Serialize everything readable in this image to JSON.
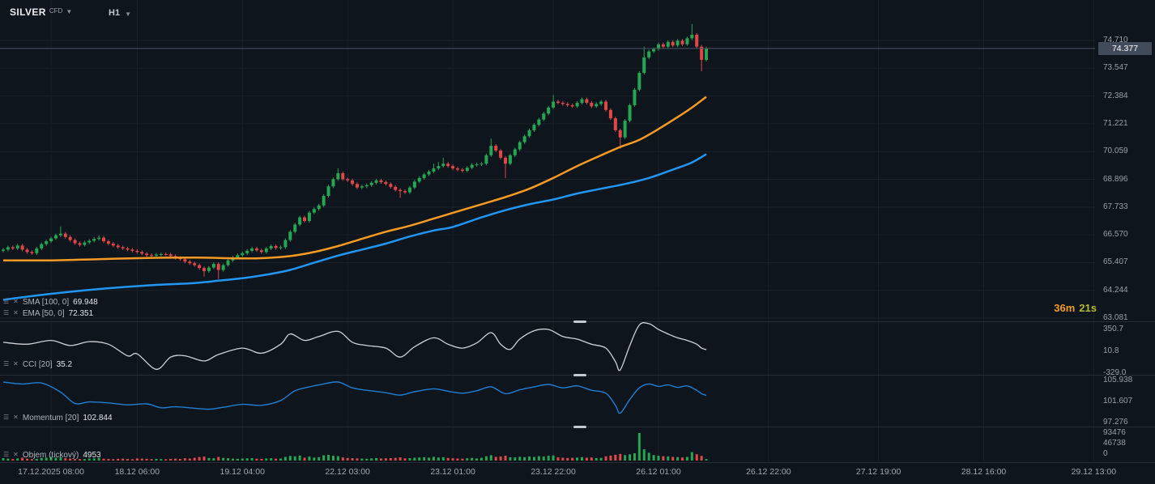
{
  "app": {
    "instrument": "SILVER",
    "instrument_type": "CFD",
    "timeframe": "H1",
    "current_price": "74.377",
    "countdown": {
      "minutes": "36m",
      "seconds": "21s"
    }
  },
  "overlays": [
    {
      "label": "SMA [100, 0]",
      "value": "69.948"
    },
    {
      "label": "EMA [50, 0]",
      "value": "72.351"
    }
  ],
  "panels": {
    "cci": {
      "label": "CCI [20]",
      "value": "35.2",
      "axis": [
        "350.7",
        "10.8",
        "-329.0"
      ]
    },
    "momentum": {
      "label": "Momentum [20]",
      "value": "102.844",
      "axis": [
        "105.938",
        "101.607",
        "97.276"
      ]
    },
    "volume": {
      "label": "Objem (tickový)",
      "value": "4953",
      "axis": [
        "93476",
        "46738",
        "0"
      ]
    }
  },
  "colors": {
    "background": "#0e151d",
    "up": "#26a652",
    "down": "#e04848",
    "ema": "#f59a23",
    "sma": "#2196f3",
    "cci_line": "#d0d3d8",
    "momentum_line": "#1f7fd4",
    "grid": "#1a212b",
    "separator": "#242c36",
    "price_line": "#4a5564",
    "badge_bg": "#414b59",
    "countdown_minutes": "#f49d1d",
    "countdown_seconds": "#b5bb2f"
  },
  "chart_data": {
    "type": "candlestick",
    "title": "SILVER CFD H1",
    "current_price": 74.377,
    "price_axis": {
      "ticks": [
        "74.710",
        "73.547",
        "72.384",
        "71.221",
        "70.059",
        "68.896",
        "67.733",
        "66.570",
        "65.407",
        "64.244",
        "63.081"
      ],
      "values": [
        74.71,
        73.547,
        72.384,
        71.221,
        70.059,
        68.896,
        67.733,
        66.57,
        65.407,
        64.244,
        63.081
      ]
    },
    "x_ticks": [
      {
        "label": "17.12.2025 08:00",
        "i": 10
      },
      {
        "label": "18.12 06:00",
        "i": 28
      },
      {
        "label": "19.12 04:00",
        "i": 50
      },
      {
        "label": "22.12 03:00",
        "i": 72
      },
      {
        "label": "23.12 01:00",
        "i": 94
      },
      {
        "label": "23.12 22:00",
        "i": 115
      },
      {
        "label": "26.12 01:00",
        "i": 137
      },
      {
        "label": "26.12 22:00",
        "i": 160
      },
      {
        "label": "27.12 19:00",
        "i": 183
      },
      {
        "label": "28.12 16:00",
        "i": 205
      },
      {
        "label": "29.12 13:00",
        "i": 228
      }
    ],
    "first_open": 65.9,
    "closes": [
      65.95,
      66.05,
      66.0,
      66.12,
      65.95,
      65.85,
      65.8,
      66.0,
      66.18,
      66.3,
      66.42,
      66.55,
      66.62,
      66.48,
      66.35,
      66.22,
      66.15,
      66.25,
      66.32,
      66.4,
      66.45,
      66.3,
      66.2,
      66.12,
      66.05,
      66.0,
      65.95,
      65.9,
      65.85,
      65.78,
      65.72,
      65.7,
      65.74,
      65.76,
      65.75,
      65.68,
      65.6,
      65.55,
      65.45,
      65.38,
      65.3,
      65.18,
      65.05,
      65.2,
      65.35,
      65.1,
      65.3,
      65.5,
      65.62,
      65.72,
      65.8,
      65.9,
      66.0,
      65.92,
      65.85,
      66.0,
      66.1,
      66.02,
      66.05,
      66.35,
      66.7,
      67.0,
      67.3,
      67.15,
      67.5,
      67.65,
      67.8,
      68.2,
      68.6,
      68.9,
      69.15,
      68.9,
      68.85,
      68.7,
      68.55,
      68.6,
      68.65,
      68.75,
      68.85,
      68.78,
      68.7,
      68.58,
      68.45,
      68.4,
      68.35,
      68.55,
      68.8,
      68.95,
      69.1,
      69.22,
      69.35,
      69.45,
      69.55,
      69.45,
      69.35,
      69.3,
      69.25,
      69.38,
      69.5,
      69.52,
      69.55,
      69.9,
      70.3,
      70.1,
      69.8,
      69.55,
      69.9,
      70.15,
      70.45,
      70.7,
      70.95,
      71.18,
      71.4,
      71.65,
      71.9,
      72.15,
      72.1,
      72.05,
      72.0,
      71.95,
      72.1,
      72.25,
      72.1,
      71.95,
      72.05,
      72.15,
      71.8,
      71.45,
      70.95,
      70.65,
      71.35,
      72.0,
      72.65,
      73.35,
      74.0,
      74.25,
      74.35,
      74.55,
      74.45,
      74.65,
      74.5,
      74.7,
      74.55,
      74.8,
      74.95,
      74.45,
      73.9,
      74.38
    ],
    "highs": [
      66.02,
      66.12,
      66.12,
      66.19,
      66.19,
      66.02,
      65.92,
      66.07,
      66.25,
      66.37,
      66.49,
      66.62,
      66.92,
      66.69,
      66.55,
      66.42,
      66.29,
      66.32,
      66.39,
      66.47,
      66.55,
      66.52,
      66.37,
      66.27,
      66.19,
      66.12,
      66.07,
      66.02,
      65.97,
      65.92,
      65.85,
      65.79,
      65.81,
      65.83,
      65.83,
      65.82,
      65.75,
      65.67,
      65.62,
      65.52,
      65.45,
      65.37,
      65.25,
      65.27,
      65.42,
      65.42,
      65.37,
      65.57,
      65.69,
      65.79,
      65.87,
      65.97,
      66.07,
      66.07,
      65.99,
      66.07,
      66.17,
      66.17,
      66.12,
      66.42,
      66.77,
      67.07,
      67.37,
      67.37,
      67.57,
      67.72,
      67.87,
      68.27,
      68.67,
      68.97,
      69.35,
      69.22,
      68.97,
      68.92,
      68.77,
      68.67,
      68.72,
      68.82,
      68.92,
      68.92,
      68.85,
      68.77,
      68.65,
      68.52,
      68.47,
      68.62,
      68.87,
      69.02,
      69.17,
      69.29,
      69.55,
      69.62,
      69.8,
      69.62,
      69.52,
      69.42,
      69.37,
      69.45,
      69.57,
      69.59,
      69.62,
      69.97,
      70.6,
      70.37,
      70.17,
      69.87,
      69.97,
      70.22,
      70.52,
      70.77,
      71.02,
      71.25,
      71.47,
      71.72,
      71.97,
      72.42,
      72.22,
      72.17,
      72.12,
      72.07,
      72.17,
      72.32,
      72.32,
      72.17,
      72.12,
      72.22,
      72.22,
      71.87,
      71.52,
      71.02,
      71.42,
      72.07,
      72.72,
      73.42,
      74.45,
      74.32,
      74.42,
      74.62,
      74.62,
      74.72,
      74.72,
      74.77,
      74.77,
      74.87,
      75.4,
      75.02,
      74.52,
      74.45
    ],
    "lows": [
      65.83,
      65.88,
      65.93,
      65.93,
      65.88,
      65.78,
      65.73,
      65.73,
      65.93,
      66.11,
      66.23,
      66.35,
      66.48,
      66.41,
      66.28,
      66.15,
      66.08,
      66.08,
      66.18,
      66.25,
      66.33,
      66.23,
      66.13,
      66.05,
      65.98,
      65.93,
      65.88,
      65.83,
      65.78,
      65.71,
      65.65,
      65.63,
      65.63,
      65.67,
      65.68,
      65.61,
      65.53,
      65.48,
      65.38,
      65.31,
      65.23,
      65.11,
      64.82,
      64.98,
      65.13,
      64.72,
      65.03,
      65.23,
      65.43,
      65.55,
      65.65,
      65.73,
      65.83,
      65.85,
      65.78,
      65.78,
      65.93,
      65.95,
      65.95,
      65.98,
      66.28,
      66.63,
      66.93,
      67.08,
      67.08,
      67.43,
      67.58,
      67.73,
      68.13,
      68.53,
      68.83,
      68.83,
      68.78,
      68.63,
      68.48,
      68.48,
      68.53,
      68.58,
      68.68,
      68.71,
      68.63,
      68.51,
      68.38,
      68.12,
      68.28,
      68.28,
      68.48,
      68.73,
      68.88,
      69.03,
      69.15,
      69.28,
      69.38,
      69.38,
      69.28,
      69.23,
      69.18,
      69.18,
      69.31,
      69.43,
      69.45,
      69.48,
      69.83,
      70.03,
      69.73,
      68.95,
      69.48,
      69.83,
      70.08,
      70.38,
      70.63,
      70.88,
      71.11,
      71.33,
      71.58,
      71.83,
      72.03,
      71.98,
      71.93,
      71.88,
      71.88,
      72.03,
      72.03,
      71.88,
      71.88,
      71.98,
      71.73,
      71.38,
      70.88,
      70.18,
      70.58,
      71.28,
      71.93,
      72.58,
      73.28,
      73.93,
      74.18,
      74.28,
      74.38,
      74.38,
      74.43,
      74.43,
      74.48,
      74.48,
      74.73,
      74.38,
      73.42,
      73.83
    ],
    "volumes": [
      8200,
      6400,
      5100,
      7300,
      9800,
      6200,
      4800,
      5600,
      8900,
      10200,
      12400,
      9600,
      11200,
      7800,
      6900,
      5400,
      4700,
      5200,
      6800,
      7400,
      8600,
      6100,
      5300,
      4600,
      5800,
      6400,
      5100,
      4400,
      7200,
      6600,
      5900,
      4800,
      5500,
      5000,
      4300,
      5700,
      6300,
      5200,
      7800,
      6900,
      9400,
      11800,
      13600,
      8700,
      7600,
      12200,
      9100,
      7800,
      6400,
      5900,
      6800,
      7600,
      8200,
      6400,
      5700,
      7100,
      7800,
      6200,
      6900,
      12400,
      15800,
      14200,
      16900,
      9800,
      13400,
      10200,
      11600,
      17800,
      19400,
      16200,
      14800,
      10400,
      8600,
      7900,
      7200,
      6800,
      6100,
      7400,
      8200,
      6900,
      7600,
      8400,
      9200,
      10800,
      7400,
      8100,
      9600,
      10400,
      11200,
      9800,
      12600,
      10200,
      11400,
      8600,
      7800,
      6900,
      6400,
      7700,
      8900,
      7200,
      9400,
      14600,
      18200,
      12400,
      13800,
      16400,
      11200,
      10600,
      12800,
      11400,
      13600,
      12200,
      14800,
      13400,
      16200,
      17400,
      10800,
      9600,
      8800,
      9400,
      10200,
      11600,
      9800,
      10400,
      8600,
      9200,
      14400,
      16800,
      19600,
      22400,
      18600,
      21200,
      24800,
      93476,
      38200,
      26400,
      18900,
      16200,
      14600,
      13800,
      12400,
      11800,
      10600,
      12200,
      28600,
      21400,
      15800,
      4953
    ],
    "ema50": {
      "name": "EMA [50, 0]",
      "last": 72.351,
      "points": [
        [
          0,
          65.5
        ],
        [
          10,
          65.5
        ],
        [
          20,
          65.55
        ],
        [
          30,
          65.6
        ],
        [
          40,
          65.62
        ],
        [
          45,
          65.6
        ],
        [
          50,
          65.58
        ],
        [
          55,
          65.6
        ],
        [
          60,
          65.68
        ],
        [
          65,
          65.85
        ],
        [
          70,
          66.1
        ],
        [
          75,
          66.4
        ],
        [
          80,
          66.7
        ],
        [
          85,
          66.95
        ],
        [
          90,
          67.25
        ],
        [
          95,
          67.55
        ],
        [
          100,
          67.85
        ],
        [
          105,
          68.15
        ],
        [
          110,
          68.5
        ],
        [
          115,
          68.95
        ],
        [
          120,
          69.45
        ],
        [
          125,
          69.9
        ],
        [
          129,
          70.25
        ],
        [
          133,
          70.55
        ],
        [
          137,
          71.0
        ],
        [
          141,
          71.5
        ],
        [
          144,
          71.9
        ],
        [
          147,
          72.35
        ]
      ]
    },
    "sma100": {
      "name": "SMA [100, 0]",
      "last": 69.948,
      "points": [
        [
          0,
          63.85
        ],
        [
          10,
          64.1
        ],
        [
          20,
          64.3
        ],
        [
          30,
          64.45
        ],
        [
          40,
          64.55
        ],
        [
          45,
          64.65
        ],
        [
          50,
          64.75
        ],
        [
          55,
          64.9
        ],
        [
          60,
          65.1
        ],
        [
          65,
          65.4
        ],
        [
          70,
          65.7
        ],
        [
          75,
          65.95
        ],
        [
          80,
          66.2
        ],
        [
          85,
          66.5
        ],
        [
          90,
          66.75
        ],
        [
          94,
          66.9
        ],
        [
          100,
          67.3
        ],
        [
          105,
          67.6
        ],
        [
          110,
          67.85
        ],
        [
          115,
          68.05
        ],
        [
          120,
          68.3
        ],
        [
          125,
          68.5
        ],
        [
          130,
          68.7
        ],
        [
          135,
          68.95
        ],
        [
          140,
          69.3
        ],
        [
          144,
          69.6
        ],
        [
          147,
          69.95
        ]
      ]
    },
    "cci": {
      "name": "CCI [20]",
      "last": 35.2,
      "axis_values": [
        350.7,
        10.8,
        -329.0
      ],
      "points": [
        [
          0,
          150
        ],
        [
          5,
          120
        ],
        [
          10,
          180
        ],
        [
          14,
          100
        ],
        [
          18,
          160
        ],
        [
          22,
          120
        ],
        [
          26,
          -60
        ],
        [
          28,
          -30
        ],
        [
          32,
          -270
        ],
        [
          35,
          -80
        ],
        [
          38,
          -60
        ],
        [
          42,
          -140
        ],
        [
          45,
          -40
        ],
        [
          50,
          60
        ],
        [
          54,
          -20
        ],
        [
          58,
          120
        ],
        [
          60,
          280
        ],
        [
          63,
          180
        ],
        [
          66,
          240
        ],
        [
          70,
          320
        ],
        [
          73,
          150
        ],
        [
          76,
          100
        ],
        [
          80,
          60
        ],
        [
          83,
          -80
        ],
        [
          86,
          80
        ],
        [
          90,
          220
        ],
        [
          93,
          120
        ],
        [
          96,
          60
        ],
        [
          99,
          140
        ],
        [
          102,
          300
        ],
        [
          104,
          120
        ],
        [
          106,
          40
        ],
        [
          108,
          200
        ],
        [
          111,
          330
        ],
        [
          114,
          350
        ],
        [
          117,
          240
        ],
        [
          120,
          200
        ],
        [
          123,
          120
        ],
        [
          126,
          60
        ],
        [
          128,
          -150
        ],
        [
          129,
          -280
        ],
        [
          131,
          100
        ],
        [
          133,
          420
        ],
        [
          135,
          440
        ],
        [
          137,
          350
        ],
        [
          139,
          280
        ],
        [
          141,
          220
        ],
        [
          143,
          180
        ],
        [
          145,
          120
        ],
        [
          146,
          60
        ],
        [
          147,
          35.2
        ]
      ]
    },
    "momentum": {
      "name": "Momentum [20]",
      "last": 102.844,
      "axis_values": [
        105.938,
        101.607,
        97.276
      ],
      "points": [
        [
          0,
          105.6
        ],
        [
          4,
          105.2
        ],
        [
          8,
          105.4
        ],
        [
          12,
          103.5
        ],
        [
          15,
          101.2
        ],
        [
          18,
          101.5
        ],
        [
          22,
          101.3
        ],
        [
          26,
          100.9
        ],
        [
          30,
          101.1
        ],
        [
          33,
          100.3
        ],
        [
          36,
          100.5
        ],
        [
          40,
          100.2
        ],
        [
          43,
          100.0
        ],
        [
          46,
          100.4
        ],
        [
          50,
          101.0
        ],
        [
          54,
          100.8
        ],
        [
          58,
          101.8
        ],
        [
          61,
          103.8
        ],
        [
          64,
          104.6
        ],
        [
          67,
          105.2
        ],
        [
          70,
          105.6
        ],
        [
          73,
          104.4
        ],
        [
          76,
          103.9
        ],
        [
          80,
          103.4
        ],
        [
          83,
          102.9
        ],
        [
          86,
          103.6
        ],
        [
          90,
          104.2
        ],
        [
          93,
          103.7
        ],
        [
          96,
          103.3
        ],
        [
          99,
          103.8
        ],
        [
          102,
          104.6
        ],
        [
          105,
          103.2
        ],
        [
          108,
          104.0
        ],
        [
          111,
          104.6
        ],
        [
          114,
          105.1
        ],
        [
          117,
          104.4
        ],
        [
          120,
          104.8
        ],
        [
          123,
          103.9
        ],
        [
          126,
          103.3
        ],
        [
          128,
          100.8
        ],
        [
          129,
          99.2
        ],
        [
          131,
          102.0
        ],
        [
          133,
          104.4
        ],
        [
          135,
          105.2
        ],
        [
          137,
          104.7
        ],
        [
          139,
          105.0
        ],
        [
          141,
          104.5
        ],
        [
          143,
          104.8
        ],
        [
          145,
          103.9
        ],
        [
          146,
          103.2
        ],
        [
          147,
          102.844
        ]
      ]
    },
    "volume_axis_values": [
      93476,
      46738,
      0
    ]
  }
}
